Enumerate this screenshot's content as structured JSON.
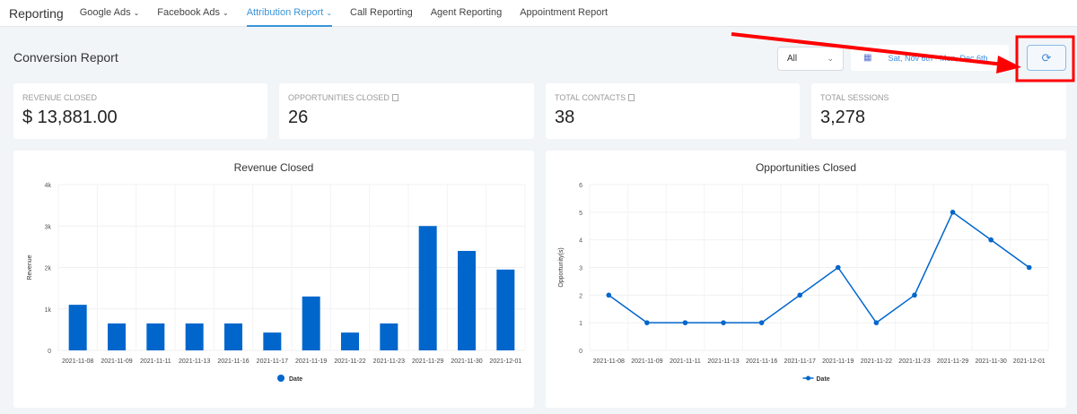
{
  "nav": {
    "brand": "Reporting",
    "items": [
      {
        "label": "Google Ads",
        "chev": "⌄"
      },
      {
        "label": "Facebook Ads",
        "chev": "⌄"
      },
      {
        "label": "Attribution Report",
        "chev": "⌄"
      },
      {
        "label": "Call Reporting"
      },
      {
        "label": "Agent Reporting"
      },
      {
        "label": "Appointment Report"
      }
    ]
  },
  "page": {
    "title": "Conversion Report",
    "filter": "All",
    "date_range": "Sat, Nov 6th - Mon, Dec 6th"
  },
  "cards": [
    {
      "label": "Revenue Closed",
      "value": "$ 13,881.00"
    },
    {
      "label": "Opportunities Closed",
      "value": "26"
    },
    {
      "label": "Total Contacts",
      "value": "38"
    },
    {
      "label": "Total Sessions",
      "value": "3,278"
    }
  ],
  "colors": {
    "accent": "#3a95d8",
    "bar": "#0066cc",
    "annotation": "#ff0000"
  },
  "chart_data": [
    {
      "type": "bar",
      "title": "Revenue Closed",
      "ylabel": "Revenue",
      "legend": "Date",
      "ylim": [
        0,
        4000
      ],
      "yticks": [
        "0",
        "1k",
        "2k",
        "3k",
        "4k"
      ],
      "categories": [
        "2021-11-08",
        "2021-11-09",
        "2021-11-11",
        "2021-11-13",
        "2021-11-16",
        "2021-11-17",
        "2021-11-19",
        "2021-11-22",
        "2021-11-23",
        "2021-11-29",
        "2021-11-30",
        "2021-12-01"
      ],
      "values": [
        1100,
        650,
        650,
        650,
        650,
        430,
        1300,
        430,
        650,
        3000,
        2400,
        1950
      ]
    },
    {
      "type": "line",
      "title": "Opportunities Closed",
      "ylabel": "Opportunity(s)",
      "legend": "Date",
      "ylim": [
        0,
        6
      ],
      "yticks": [
        "0",
        "1",
        "2",
        "3",
        "4",
        "5",
        "6"
      ],
      "categories": [
        "2021-11-08",
        "2021-11-09",
        "2021-11-11",
        "2021-11-13",
        "2021-11-16",
        "2021-11-17",
        "2021-11-19",
        "2021-11-22",
        "2021-11-23",
        "2021-11-29",
        "2021-11-30",
        "2021-12-01"
      ],
      "values": [
        2,
        1,
        1,
        1,
        1,
        2,
        3,
        1,
        2,
        5,
        4,
        3
      ]
    }
  ]
}
